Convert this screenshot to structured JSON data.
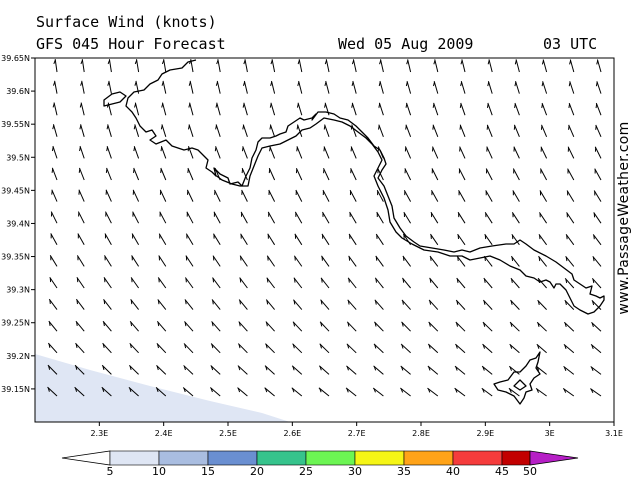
{
  "header": {
    "title": "Surface Wind (knots)",
    "subtitle": "GFS 045 Hour Forecast",
    "date": "Wed 05 Aug 2009",
    "time": "03 UTC"
  },
  "watermark": "www.PassageWeather.com",
  "map": {
    "lon_range": [
      2.2,
      3.1
    ],
    "lat_range": [
      39.1,
      39.65
    ],
    "lon_ticks": [
      "2.3E",
      "2.4E",
      "2.5E",
      "2.6E",
      "2.7E",
      "2.8E",
      "2.9E",
      "3E",
      "3.1E"
    ],
    "lat_ticks": [
      "39.65N",
      "39.6N",
      "39.55N",
      "39.5N",
      "39.45N",
      "39.4N",
      "39.35N",
      "39.3N",
      "39.25N",
      "39.2N",
      "39.15N"
    ],
    "colors": {
      "land_outline": "#000000",
      "wind_5_10": "#dfe6f4",
      "barb": "#000000"
    }
  },
  "scale": {
    "labels": [
      "5",
      "10",
      "15",
      "20",
      "25",
      "30",
      "35",
      "40",
      "45",
      "50"
    ],
    "colors": [
      "#ffffff",
      "#dfe6f4",
      "#a9bde0",
      "#6a8fd1",
      "#36c38c",
      "#6cf553",
      "#f5f516",
      "#ffa318",
      "#f53c3c",
      "#c20000",
      "#b61fc6"
    ]
  }
}
